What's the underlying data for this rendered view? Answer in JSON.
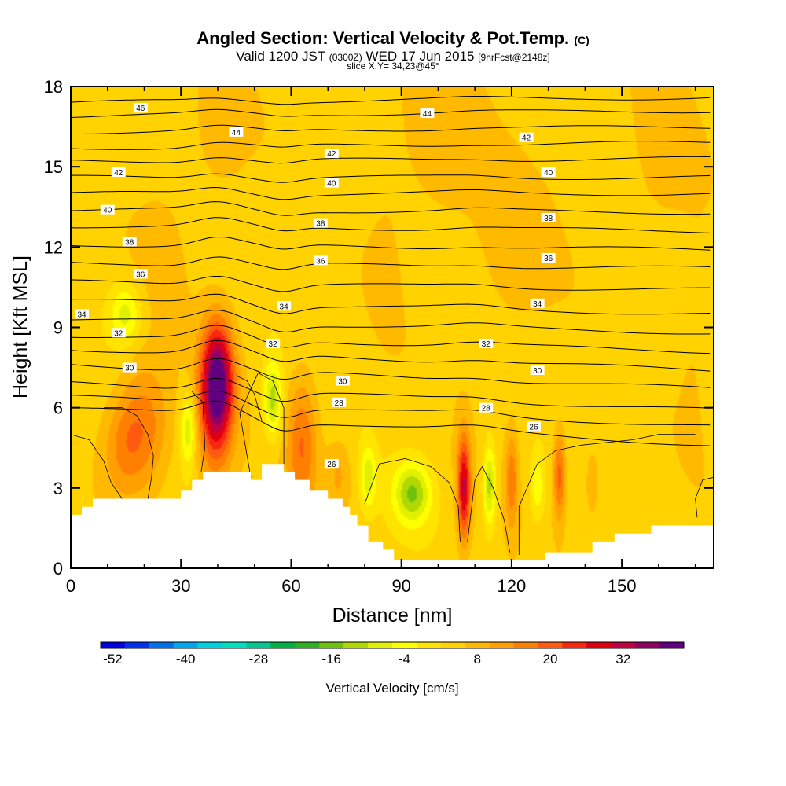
{
  "header": {
    "title": "Angled Section: Vertical Velocity & Pot.Temp.",
    "title_suffix": "(C)",
    "valid_prefix": "Valid 1200 JST",
    "valid_zulu": "(0300Z)",
    "valid_date": "WED 17 Jun 2015",
    "forecast": "[9hrFcst@2148z]",
    "slice": "slice X,Y= 34,23@45°"
  },
  "chart_data": {
    "type": "heatmap",
    "xlabel": "Distance [nm]",
    "ylabel": "Height [Kft MSL]",
    "xlim": [
      0,
      175
    ],
    "ylim": [
      0,
      18
    ],
    "xticks": [
      0,
      30,
      60,
      90,
      120,
      150
    ],
    "yticks": [
      0,
      3,
      6,
      9,
      12,
      15,
      18
    ],
    "grid": false,
    "background_level": 4,
    "velocity_cells": [
      {
        "x": 20,
        "y": 5.3,
        "sx": 5,
        "sy": 1.7,
        "v": 17
      },
      {
        "x": 14,
        "y": 4.5,
        "sx": 4,
        "sy": 1.3,
        "v": 12
      },
      {
        "x": 40,
        "y": 7.0,
        "sx": 3,
        "sy": 1.5,
        "v": 36
      },
      {
        "x": 39,
        "y": 5.5,
        "sx": 3.5,
        "sy": 2.0,
        "v": 16
      },
      {
        "x": 32,
        "y": 5.2,
        "sx": 1.5,
        "sy": 1.0,
        "v": -10
      },
      {
        "x": 55,
        "y": 6.3,
        "sx": 1.8,
        "sy": 1.0,
        "v": -12
      },
      {
        "x": 63,
        "y": 4.7,
        "sx": 3,
        "sy": 1.8,
        "v": 18
      },
      {
        "x": 15,
        "y": 9.5,
        "sx": 3,
        "sy": 0.8,
        "v": -8
      },
      {
        "x": 73,
        "y": 3.5,
        "sx": 2.5,
        "sy": 1.0,
        "v": 11
      },
      {
        "x": 81,
        "y": 3.4,
        "sx": 1.5,
        "sy": 0.8,
        "v": -8
      },
      {
        "x": 93,
        "y": 2.8,
        "sx": 3.5,
        "sy": 0.8,
        "v": -14
      },
      {
        "x": 107,
        "y": 3.0,
        "sx": 1.3,
        "sy": 1.4,
        "v": 30
      },
      {
        "x": 114,
        "y": 3.1,
        "sx": 1.2,
        "sy": 1.1,
        "v": -13
      },
      {
        "x": 120,
        "y": 3.3,
        "sx": 1.2,
        "sy": 1.3,
        "v": 16
      },
      {
        "x": 133,
        "y": 3.5,
        "sx": 1.2,
        "sy": 1.2,
        "v": 20
      },
      {
        "x": 127,
        "y": 3.0,
        "sx": 1.4,
        "sy": 0.9,
        "v": -5
      },
      {
        "x": 142,
        "y": 3.2,
        "sx": 1.5,
        "sy": 1.0,
        "v": 10
      },
      {
        "x": 100,
        "y": 16.0,
        "sx": 8,
        "sy": 2.5,
        "v": 9
      },
      {
        "x": 160,
        "y": 15.5,
        "sx": 6,
        "sy": 2.5,
        "v": 8
      },
      {
        "x": 40,
        "y": 16.0,
        "sx": 6,
        "sy": 2.0,
        "v": 8
      },
      {
        "x": 25,
        "y": 12.0,
        "sx": 5,
        "sy": 2.0,
        "v": 7
      },
      {
        "x": 120,
        "y": 11.5,
        "sx": 8,
        "sy": 2.5,
        "v": 8
      },
      {
        "x": 170,
        "y": 9.0,
        "sx": 4,
        "sy": 3.0,
        "v": 7
      },
      {
        "x": 86,
        "y": 12.5,
        "sx": 4,
        "sy": 3.0,
        "v": 6
      }
    ],
    "terrain": [
      [
        0,
        2.0
      ],
      [
        3,
        2.0
      ],
      [
        3,
        2.3
      ],
      [
        6,
        2.3
      ],
      [
        6,
        2.6
      ],
      [
        30,
        2.6
      ],
      [
        30,
        2.9
      ],
      [
        33,
        2.9
      ],
      [
        33,
        3.3
      ],
      [
        36,
        3.3
      ],
      [
        36,
        3.6
      ],
      [
        49,
        3.6
      ],
      [
        49,
        3.3
      ],
      [
        52,
        3.3
      ],
      [
        52,
        3.9
      ],
      [
        58,
        3.9
      ],
      [
        58,
        3.6
      ],
      [
        61,
        3.6
      ],
      [
        61,
        3.3
      ],
      [
        65,
        3.3
      ],
      [
        65,
        2.9
      ],
      [
        70,
        2.9
      ],
      [
        70,
        2.6
      ],
      [
        74,
        2.6
      ],
      [
        74,
        2.3
      ],
      [
        76,
        2.3
      ],
      [
        76,
        2.0
      ],
      [
        78,
        2.0
      ],
      [
        78,
        1.6
      ],
      [
        81,
        1.6
      ],
      [
        81,
        1.0
      ],
      [
        85,
        1.0
      ],
      [
        85,
        0.7
      ],
      [
        88,
        0.7
      ],
      [
        88,
        0.3
      ],
      [
        129,
        0.3
      ],
      [
        129,
        0.6
      ],
      [
        142,
        0.6
      ],
      [
        142,
        1.0
      ],
      [
        148,
        1.0
      ],
      [
        148,
        1.3
      ],
      [
        158,
        1.3
      ],
      [
        158,
        1.6
      ],
      [
        175,
        1.6
      ]
    ],
    "theta_levels": [
      26,
      28,
      30,
      32,
      34,
      36,
      38,
      40,
      42,
      44,
      46
    ],
    "theta_contours": [
      {
        "y0": 6.0,
        "y1": 4.6
      },
      {
        "y0": 6.4,
        "y1": 5.3
      },
      {
        "y0": 6.9,
        "y1": 5.9
      },
      {
        "y0": 7.6,
        "y1": 6.7
      },
      {
        "y0": 8.2,
        "y1": 7.4
      },
      {
        "y0": 8.7,
        "y1": 8.1
      },
      {
        "y0": 9.3,
        "y1": 8.8
      },
      {
        "y0": 10.0,
        "y1": 9.5
      },
      {
        "y0": 10.7,
        "y1": 10.4
      },
      {
        "y0": 11.4,
        "y1": 11.2
      },
      {
        "y0": 12.1,
        "y1": 11.9
      },
      {
        "y0": 12.8,
        "y1": 12.6
      },
      {
        "y0": 13.4,
        "y1": 13.3
      },
      {
        "y0": 14.0,
        "y1": 14.0
      },
      {
        "y0": 14.6,
        "y1": 14.6
      },
      {
        "y0": 15.2,
        "y1": 15.3
      },
      {
        "y0": 15.7,
        "y1": 15.9
      },
      {
        "y0": 16.3,
        "y1": 16.5
      },
      {
        "y0": 16.9,
        "y1": 17.1
      },
      {
        "y0": 17.4,
        "y1": 17.6
      }
    ],
    "contour_labels": [
      {
        "text": "46",
        "x": 19,
        "y": 17.2
      },
      {
        "text": "44",
        "x": 45,
        "y": 16.3
      },
      {
        "text": "44",
        "x": 97,
        "y": 17.0
      },
      {
        "text": "42",
        "x": 71,
        "y": 15.5
      },
      {
        "text": "42",
        "x": 124,
        "y": 16.1
      },
      {
        "text": "42",
        "x": 13,
        "y": 14.8
      },
      {
        "text": "40",
        "x": 71,
        "y": 14.4
      },
      {
        "text": "40",
        "x": 130,
        "y": 14.8
      },
      {
        "text": "40",
        "x": 10,
        "y": 13.4
      },
      {
        "text": "38",
        "x": 68,
        "y": 12.9
      },
      {
        "text": "38",
        "x": 130,
        "y": 13.1
      },
      {
        "text": "38",
        "x": 16,
        "y": 12.2
      },
      {
        "text": "36",
        "x": 68,
        "y": 11.5
      },
      {
        "text": "36",
        "x": 130,
        "y": 11.6
      },
      {
        "text": "36",
        "x": 19,
        "y": 11.0
      },
      {
        "text": "34",
        "x": 58,
        "y": 9.8
      },
      {
        "text": "34",
        "x": 127,
        "y": 9.9
      },
      {
        "text": "34",
        "x": 3,
        "y": 9.5
      },
      {
        "text": "32",
        "x": 55,
        "y": 8.4
      },
      {
        "text": "32",
        "x": 113,
        "y": 8.4
      },
      {
        "text": "32",
        "x": 13,
        "y": 8.8
      },
      {
        "text": "30",
        "x": 16,
        "y": 7.5
      },
      {
        "text": "30",
        "x": 74,
        "y": 7.0
      },
      {
        "text": "30",
        "x": 127,
        "y": 7.4
      },
      {
        "text": "28",
        "x": 73,
        "y": 6.2
      },
      {
        "text": "28",
        "x": 113,
        "y": 6.0
      },
      {
        "text": "26",
        "x": 126,
        "y": 5.3
      },
      {
        "text": "26",
        "x": 71,
        "y": 3.9
      }
    ],
    "zero_contours": [
      [
        [
          0,
          5.0
        ],
        [
          5,
          4.8
        ],
        [
          9,
          4.0
        ],
        [
          11,
          3.2
        ],
        [
          14,
          2.6
        ]
      ],
      [
        [
          9,
          6.0
        ],
        [
          14,
          6.0
        ],
        [
          18,
          5.7
        ],
        [
          21,
          5.0
        ],
        [
          22.5,
          4.2
        ],
        [
          22,
          3.4
        ],
        [
          21,
          2.6
        ]
      ],
      [
        [
          33,
          6.6
        ],
        [
          36,
          6.2
        ],
        [
          36.5,
          4.5
        ],
        [
          35.5,
          3.6
        ]
      ],
      [
        [
          45,
          7.2
        ],
        [
          48,
          7.0
        ],
        [
          50,
          6.5
        ],
        [
          52,
          5.5
        ]
      ],
      [
        [
          49,
          3.4
        ],
        [
          46,
          5.8
        ],
        [
          51,
          7.3
        ],
        [
          55,
          7.0
        ],
        [
          58,
          6.0
        ],
        [
          58,
          3.9
        ]
      ],
      [
        [
          80,
          2.4
        ],
        [
          84,
          3.9
        ],
        [
          91,
          4.1
        ],
        [
          98,
          3.8
        ],
        [
          103,
          3.2
        ],
        [
          105.5,
          2.3
        ],
        [
          106,
          1.0
        ]
      ],
      [
        [
          108,
          1.0
        ],
        [
          110,
          3.3
        ],
        [
          112,
          3.8
        ],
        [
          115,
          3.0
        ],
        [
          118,
          1.8
        ],
        [
          119.5,
          0.6
        ]
      ],
      [
        [
          122,
          0.5
        ],
        [
          122,
          2.3
        ],
        [
          127,
          3.9
        ],
        [
          132,
          4.4
        ],
        [
          139,
          4.6
        ],
        [
          146,
          4.7
        ],
        [
          153,
          4.8
        ],
        [
          160,
          5.0
        ],
        [
          170,
          5.0
        ]
      ],
      [
        [
          175,
          3.4
        ],
        [
          172,
          3.3
        ],
        [
          170,
          2.6
        ],
        [
          170.5,
          1.9
        ]
      ]
    ],
    "colorbar": {
      "label": "Vertical Velocity [cm/s]",
      "tick_values": [
        "-52",
        "-40",
        "-28",
        "-16",
        "-4",
        "8",
        "20",
        "32"
      ],
      "min": -54,
      "step": 4,
      "colors": [
        "#0000e0",
        "#0030f0",
        "#0070f0",
        "#00a8f0",
        "#00d0e0",
        "#00e0c0",
        "#00c890",
        "#00b040",
        "#30b020",
        "#70c010",
        "#b0d800",
        "#e0f000",
        "#ffff00",
        "#ffe400",
        "#ffd200",
        "#ffba00",
        "#ffa000",
        "#ff8000",
        "#ff5a10",
        "#f82810",
        "#e00010",
        "#c00040",
        "#900060",
        "#600080"
      ]
    }
  }
}
